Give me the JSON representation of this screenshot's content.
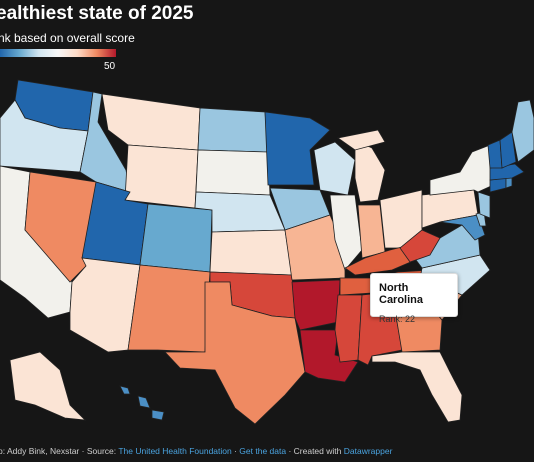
{
  "header": {
    "title": "ealthiest state of 2025",
    "subtitle": "nk based on overall score"
  },
  "legend": {
    "max_label": "50"
  },
  "tooltip": {
    "state": "North Carolina",
    "rank_text": "Rank: 22"
  },
  "footer": {
    "credit": "p: Addy Bink, Nexstar · Source: ",
    "source_link": "The United Health Foundation",
    "sep1": " · ",
    "data_link": "Get the data",
    "sep2": " · Created with ",
    "dw_link": "Datawrapper"
  },
  "colors": {
    "dark_blue": "#2166ac",
    "mid_blue": "#4b8fc5",
    "light_blue": "#9ac6e0",
    "pale_blue": "#d1e5f0",
    "neutral": "#f2f1ec",
    "pale_orange": "#fbe4d5",
    "light_orange": "#f7b594",
    "orange": "#ef8a62",
    "red_orange": "#e0603f",
    "red": "#d6473a",
    "dark_red": "#b2182b"
  }
}
